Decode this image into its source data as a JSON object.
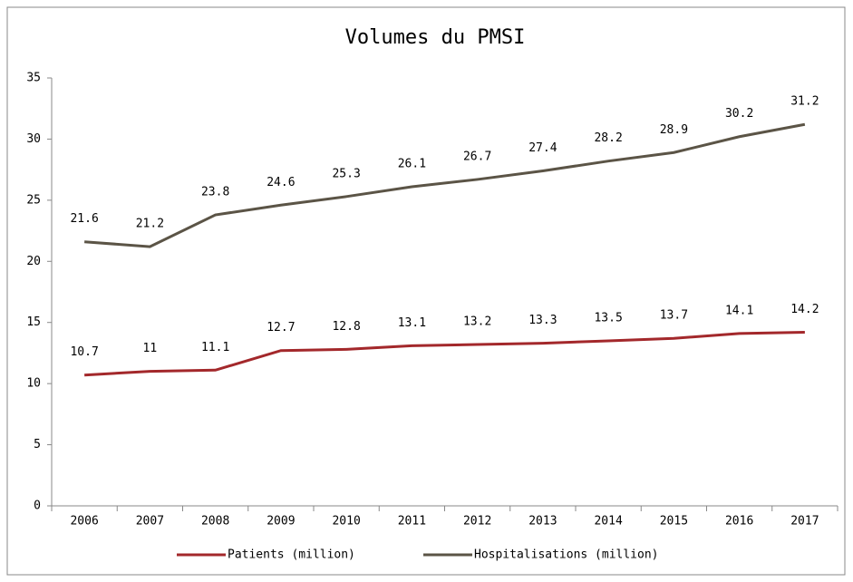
{
  "chart_data": {
    "type": "line",
    "title": "Volumes du PMSI",
    "categories": [
      "2006",
      "2007",
      "2008",
      "2009",
      "2010",
      "2011",
      "2012",
      "2013",
      "2014",
      "2015",
      "2016",
      "2017"
    ],
    "series": [
      {
        "name": "Patients (million)",
        "color": "#a3282b",
        "values": [
          10.7,
          11,
          11.1,
          12.7,
          12.8,
          13.1,
          13.2,
          13.3,
          13.5,
          13.7,
          14.1,
          14.2
        ]
      },
      {
        "name": "Hospitalisations (million)",
        "color": "#5b5446",
        "values": [
          21.6,
          21.2,
          23.8,
          24.6,
          25.3,
          26.1,
          26.7,
          27.4,
          28.2,
          28.9,
          30.2,
          31.2
        ]
      }
    ],
    "ylim": [
      0,
      35
    ],
    "yticks": [
      0,
      5,
      10,
      15,
      20,
      25,
      30,
      35
    ],
    "grid": false,
    "legend": "bottom"
  }
}
